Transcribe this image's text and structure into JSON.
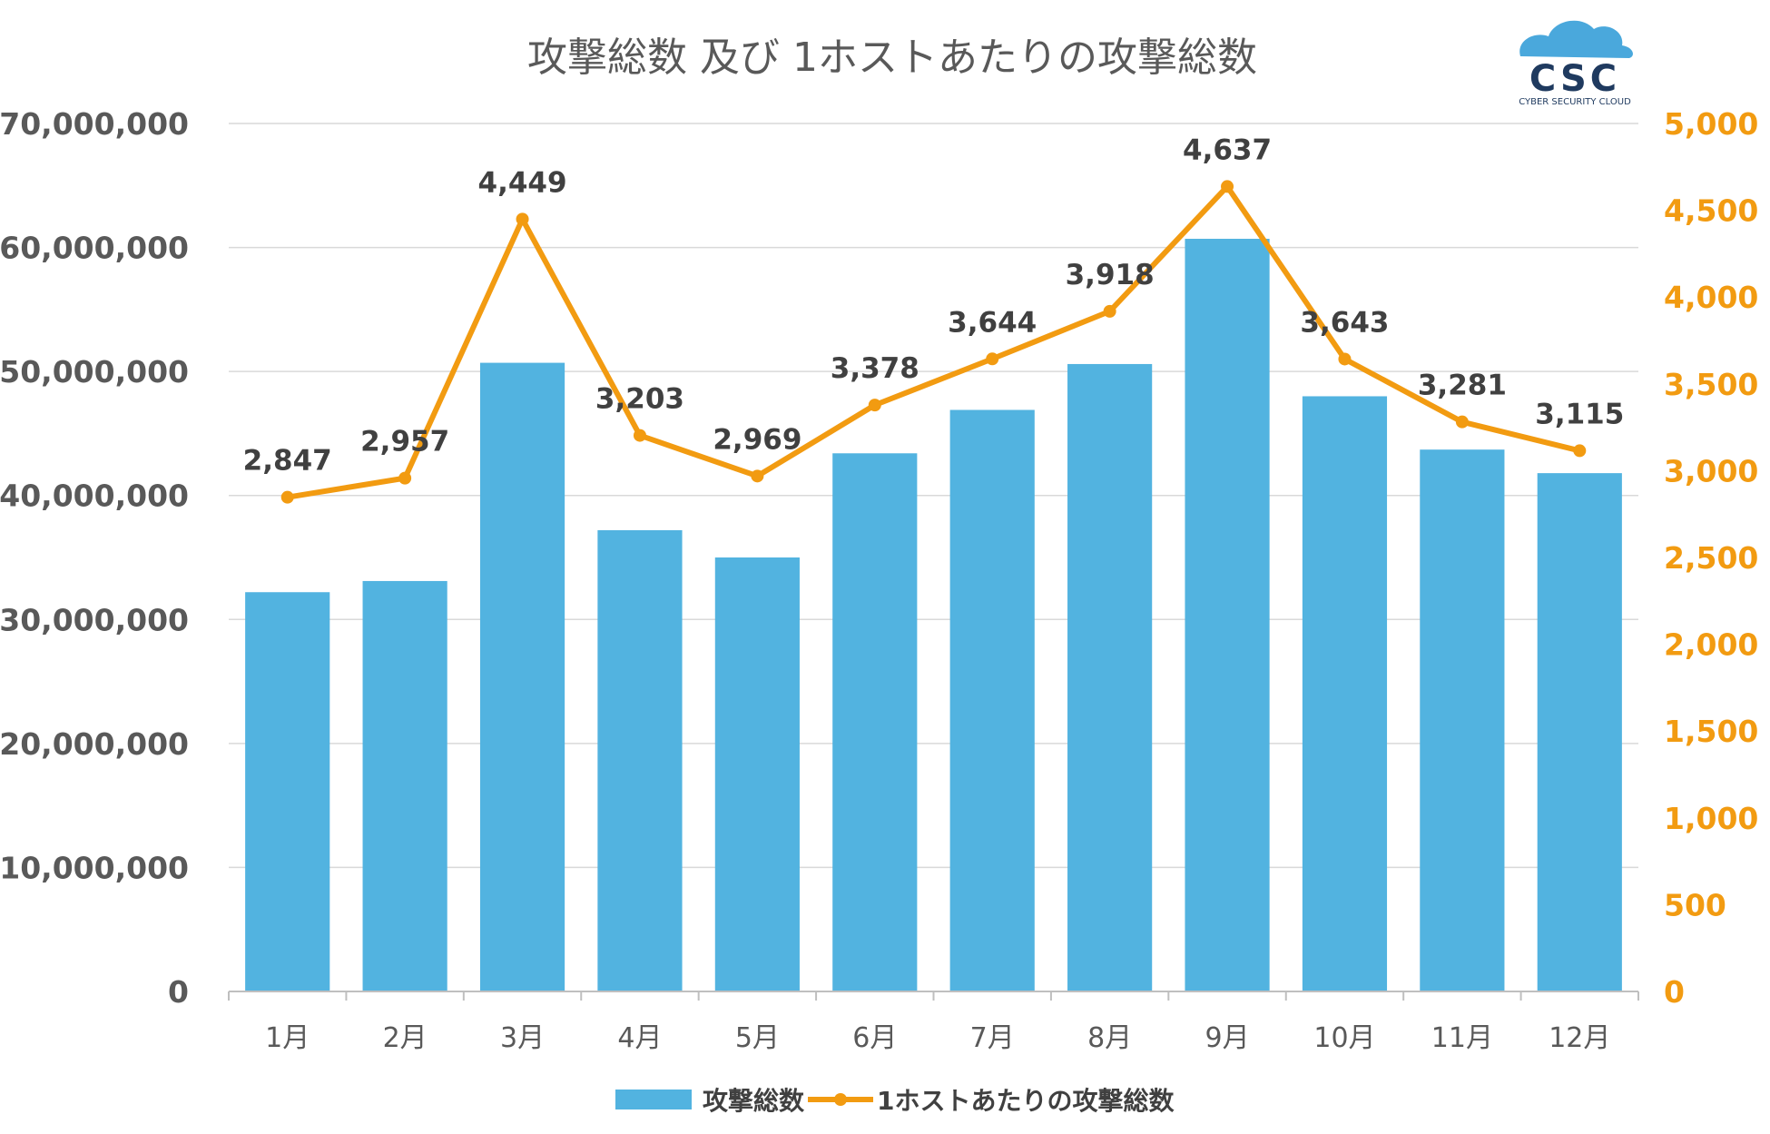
{
  "chart_data": {
    "type": "bar",
    "title": "攻撃総数 及び 1ホストあたりの攻撃総数",
    "categories": [
      "1月",
      "2月",
      "3月",
      "4月",
      "5月",
      "6月",
      "7月",
      "8月",
      "9月",
      "10月",
      "11月",
      "12月"
    ],
    "series": [
      {
        "name": "攻撃総数",
        "type": "bar",
        "axis": "left",
        "color": "#52b3e0",
        "values": [
          32200000,
          33100000,
          50700000,
          37200000,
          35000000,
          43400000,
          46900000,
          50600000,
          60700000,
          48000000,
          43700000,
          41800000
        ]
      },
      {
        "name": "1ホストあたりの攻撃総数",
        "type": "line",
        "axis": "right",
        "color": "#f29b11",
        "values": [
          2847,
          2957,
          4449,
          3203,
          2969,
          3378,
          3644,
          3918,
          4637,
          3643,
          3281,
          3115
        ],
        "labels": [
          "2,847",
          "2,957",
          "4,449",
          "3,203",
          "2,969",
          "3,378",
          "3,644",
          "3,918",
          "4,637",
          "3,643",
          "3,281",
          "3,115"
        ]
      }
    ],
    "y_left": {
      "ylim": [
        0,
        70000000
      ],
      "ticks": [
        "0",
        "10,000,000",
        "20,000,000",
        "30,000,000",
        "40,000,000",
        "50,000,000",
        "60,000,000",
        "70,000,000"
      ]
    },
    "y_right": {
      "ylim": [
        0,
        5000
      ],
      "ticks": [
        "0",
        "500",
        "1,000",
        "1,500",
        "2,000",
        "2,500",
        "3,000",
        "3,500",
        "4,000",
        "4,500",
        "5,000"
      ],
      "color": "#f29b11"
    },
    "grid": true,
    "legend_position": "bottom"
  },
  "logo": {
    "text": "CSC",
    "subtext": "CYBER SECURITY CLOUD"
  }
}
